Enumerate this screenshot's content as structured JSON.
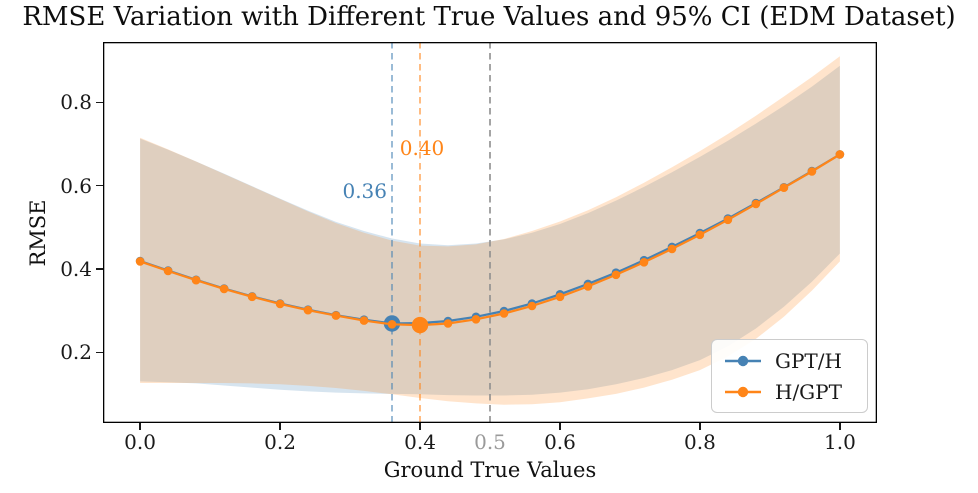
{
  "chart_data": {
    "type": "line",
    "title": "RMSE Variation with Different True Values and 95% CI (EDM Dataset)",
    "xlabel": "Ground True Values",
    "ylabel": "RMSE",
    "ci_level": "95% CI",
    "grid": false,
    "xlim": [
      -0.053,
      1.053
    ],
    "ylim": [
      0.03,
      0.945
    ],
    "x": [
      0.0,
      0.04,
      0.08,
      0.12,
      0.16,
      0.2,
      0.24,
      0.28,
      0.32,
      0.36,
      0.4,
      0.44,
      0.48,
      0.52,
      0.56,
      0.6,
      0.64,
      0.68,
      0.72,
      0.76,
      0.8,
      0.84,
      0.88,
      0.92,
      0.96,
      1.0
    ],
    "series": [
      {
        "name": "GPT/H",
        "color": "#4682b4",
        "min_index": 9,
        "min_x": 0.36,
        "min_label": "0.36",
        "values": [
          0.419,
          0.396,
          0.374,
          0.353,
          0.334,
          0.317,
          0.302,
          0.289,
          0.278,
          0.269,
          0.27,
          0.275,
          0.285,
          0.299,
          0.317,
          0.339,
          0.364,
          0.391,
          0.421,
          0.453,
          0.486,
          0.521,
          0.558,
          0.596,
          0.635,
          0.675
        ],
        "ci_upper": [
          0.713,
          0.686,
          0.658,
          0.629,
          0.599,
          0.569,
          0.54,
          0.513,
          0.491,
          0.473,
          0.461,
          0.457,
          0.461,
          0.471,
          0.487,
          0.508,
          0.534,
          0.564,
          0.597,
          0.632,
          0.669,
          0.708,
          0.749,
          0.792,
          0.838,
          0.888
        ],
        "ci_lower": [
          0.13,
          0.128,
          0.125,
          0.12,
          0.115,
          0.11,
          0.106,
          0.103,
          0.101,
          0.1,
          0.099,
          0.097,
          0.096,
          0.096,
          0.098,
          0.103,
          0.111,
          0.123,
          0.138,
          0.157,
          0.181,
          0.214,
          0.257,
          0.309,
          0.369,
          0.437
        ]
      },
      {
        "name": "H/GPT",
        "color": "#ff8518",
        "min_index": 10,
        "min_x": 0.4,
        "min_label": "0.40",
        "values": [
          0.418,
          0.395,
          0.373,
          0.352,
          0.333,
          0.316,
          0.301,
          0.288,
          0.276,
          0.267,
          0.265,
          0.269,
          0.279,
          0.293,
          0.311,
          0.333,
          0.358,
          0.386,
          0.416,
          0.448,
          0.482,
          0.518,
          0.556,
          0.595,
          0.634,
          0.675
        ],
        "ci_upper": [
          0.715,
          0.687,
          0.658,
          0.628,
          0.598,
          0.568,
          0.538,
          0.51,
          0.487,
          0.468,
          0.456,
          0.454,
          0.459,
          0.472,
          0.491,
          0.514,
          0.541,
          0.572,
          0.607,
          0.644,
          0.683,
          0.724,
          0.768,
          0.814,
          0.861,
          0.911
        ],
        "ci_lower": [
          0.126,
          0.126,
          0.126,
          0.126,
          0.125,
          0.123,
          0.119,
          0.114,
          0.107,
          0.099,
          0.09,
          0.082,
          0.077,
          0.074,
          0.075,
          0.08,
          0.089,
          0.1,
          0.115,
          0.134,
          0.157,
          0.19,
          0.232,
          0.285,
          0.348,
          0.418
        ]
      }
    ],
    "vlines": [
      {
        "x": 0.36,
        "color": "#4682b4",
        "opacity": 0.6
      },
      {
        "x": 0.4,
        "color": "#ff8518",
        "opacity": 0.6
      },
      {
        "x": 0.5,
        "color": "#8f8f8f",
        "opacity": 0.9
      }
    ],
    "annotations": [
      {
        "text": "0.36",
        "x": 0.36,
        "y": 0.587,
        "color": "#4682b4",
        "anchor": "end",
        "dx": -5
      },
      {
        "text": "0.40",
        "x": 0.4,
        "y": 0.69,
        "color": "#ff8518",
        "anchor": "middle",
        "dx": 2
      }
    ],
    "xticks": [
      {
        "v": 0.0,
        "label": "0.0"
      },
      {
        "v": 0.2,
        "label": "0.2"
      },
      {
        "v": 0.4,
        "label": "0.4"
      },
      {
        "v": 0.5,
        "label": "0.5",
        "color": "#9a9a9a",
        "no_tick": true
      },
      {
        "v": 0.6,
        "label": "0.6"
      },
      {
        "v": 0.8,
        "label": "0.8"
      },
      {
        "v": 1.0,
        "label": "1.0"
      }
    ],
    "yticks": [
      {
        "v": 0.2,
        "label": "0.2"
      },
      {
        "v": 0.4,
        "label": "0.4"
      },
      {
        "v": 0.6,
        "label": "0.6"
      },
      {
        "v": 0.8,
        "label": "0.8"
      }
    ],
    "legend": {
      "location": "lower-right"
    },
    "band_opacity": 0.22,
    "spine_color": "#000000"
  }
}
